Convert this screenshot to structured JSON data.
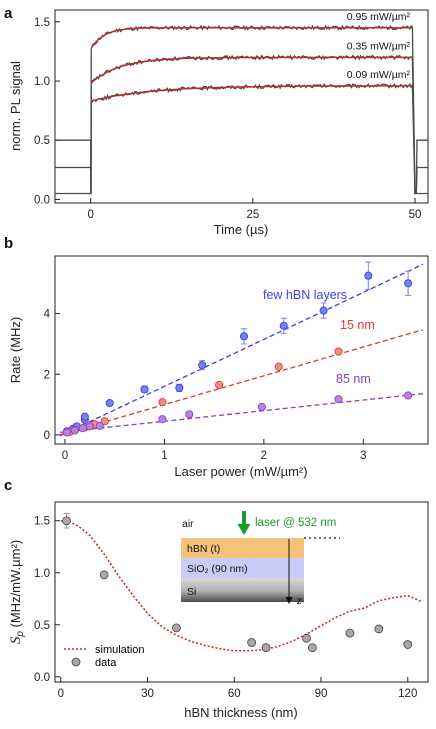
{
  "chart_data": [
    {
      "panel": "a",
      "type": "line",
      "xlabel": "Time (µs)",
      "ylabel": "norm. PL signal",
      "xlim": [
        -5.5,
        52
      ],
      "ylim": [
        -0.03,
        1.6
      ],
      "xticks": [
        0,
        25,
        50
      ],
      "yticks": [
        0.0,
        0.5,
        1.0,
        1.5
      ],
      "ytick_labels": [
        "0.0",
        "0.5",
        "1.0",
        "1.5"
      ],
      "series": [
        {
          "name": "0.95 mW/µm²",
          "baseline": 0.05,
          "on_start": 1.27,
          "plateau": 1.45,
          "tau": 2.0,
          "before": 0.5,
          "after": 0.5
        },
        {
          "name": "0.35 mW/µm²",
          "baseline": 0.05,
          "on_start": 0.98,
          "plateau": 1.2,
          "tau": 4.5,
          "before": 0.27,
          "after": 0.27
        },
        {
          "name": "0.09 mW/µm²",
          "baseline": 0.05,
          "on_start": 0.83,
          "plateau": 0.96,
          "tau": 9.0,
          "before": 0.05,
          "after": 0.05
        }
      ],
      "pulse": [
        0,
        50
      ],
      "colors": {
        "data": "#4a4a4a",
        "fit": "#c0282d"
      }
    },
    {
      "panel": "b",
      "type": "scatter",
      "xlabel": "Laser power (mW/µm²)",
      "ylabel": "Rate (MHz)",
      "xlim": [
        -0.1,
        3.65
      ],
      "ylim": [
        -0.3,
        5.9
      ],
      "xticks": [
        0,
        1,
        2,
        3
      ],
      "yticks": [
        0,
        2,
        4
      ],
      "series": [
        {
          "name": "few hBN layers",
          "color": "#3b3fe8",
          "fill": "#7b80f0",
          "fit_slope": 1.55,
          "fit_intercept": 0.05,
          "points": [
            [
              0.02,
              0.12
            ],
            [
              0.08,
              0.2
            ],
            [
              0.12,
              0.28
            ],
            [
              0.2,
              0.5
            ],
            [
              0.2,
              0.6
            ],
            [
              0.45,
              1.05
            ],
            [
              0.8,
              1.5
            ],
            [
              1.15,
              1.55
            ],
            [
              1.38,
              2.3
            ],
            [
              1.8,
              3.25
            ],
            [
              2.2,
              3.6
            ],
            [
              2.6,
              4.1
            ],
            [
              3.05,
              5.25
            ],
            [
              3.45,
              5.0
            ]
          ],
          "errors": [
            0.05,
            0.05,
            0.05,
            0.05,
            0.05,
            0.08,
            0.1,
            0.12,
            0.15,
            0.25,
            0.25,
            0.25,
            0.45,
            0.4
          ]
        },
        {
          "name": "15 nm",
          "color": "#e0382a",
          "fill": "#f08f86",
          "fit_slope": 0.95,
          "fit_intercept": 0.05,
          "points": [
            [
              0.05,
              0.1
            ],
            [
              0.1,
              0.15
            ],
            [
              0.2,
              0.25
            ],
            [
              0.3,
              0.35
            ],
            [
              0.4,
              0.45
            ],
            [
              0.98,
              1.08
            ],
            [
              1.55,
              1.65
            ],
            [
              2.15,
              2.25
            ],
            [
              2.75,
              2.75
            ]
          ],
          "errors": [
            0.03,
            0.03,
            0.03,
            0.03,
            0.03,
            0.05,
            0.05,
            0.05,
            0.05
          ]
        },
        {
          "name": "85 nm",
          "color": "#8e3fc0",
          "fill": "#b983e0",
          "fit_slope": 0.35,
          "fit_intercept": 0.1,
          "points": [
            [
              0.02,
              0.08
            ],
            [
              0.1,
              0.15
            ],
            [
              0.18,
              0.22
            ],
            [
              0.25,
              0.28
            ],
            [
              0.35,
              0.3
            ],
            [
              0.98,
              0.52
            ],
            [
              1.25,
              0.68
            ],
            [
              1.98,
              0.92
            ],
            [
              2.75,
              1.18
            ],
            [
              3.45,
              1.3
            ]
          ],
          "errors": [
            0.02,
            0.02,
            0.02,
            0.02,
            0.02,
            0.03,
            0.03,
            0.03,
            0.03,
            0.03
          ]
        }
      ]
    },
    {
      "panel": "c",
      "type": "scatter",
      "xlabel": "hBN thickness (nm)",
      "ylabel_italic": "S",
      "ylabel_sub": "p",
      "ylabel_units": " (MHz/mW.µm²)",
      "xlim": [
        -2,
        127
      ],
      "ylim": [
        -0.05,
        1.68
      ],
      "xticks": [
        0,
        30,
        60,
        90,
        120
      ],
      "yticks": [
        0.0,
        0.5,
        1.0,
        1.5
      ],
      "ytick_labels": [
        "0.0",
        "0.5",
        "1.0",
        "1.5"
      ],
      "simulation": {
        "name": "simulation",
        "color": "#d42020",
        "x": [
          0,
          3,
          6,
          10,
          15,
          20,
          25,
          30,
          35,
          40,
          45,
          50,
          55,
          60,
          65,
          70,
          75,
          80,
          85,
          90,
          95,
          100,
          105,
          110,
          115,
          120,
          125
        ],
        "y": [
          1.5,
          1.49,
          1.45,
          1.36,
          1.18,
          0.97,
          0.78,
          0.61,
          0.48,
          0.4,
          0.34,
          0.3,
          0.27,
          0.25,
          0.25,
          0.26,
          0.29,
          0.34,
          0.41,
          0.49,
          0.57,
          0.63,
          0.66,
          0.73,
          0.76,
          0.78,
          0.72
        ]
      },
      "data": {
        "name": "data",
        "color": "#a8a8a8",
        "points": [
          [
            2,
            1.5
          ],
          [
            15,
            0.98
          ],
          [
            40,
            0.47
          ],
          [
            66,
            0.33
          ],
          [
            71,
            0.28
          ],
          [
            85,
            0.37
          ],
          [
            87,
            0.28
          ],
          [
            100,
            0.42
          ],
          [
            110,
            0.46
          ],
          [
            120,
            0.31
          ]
        ],
        "errors": [
          0.07,
          0,
          0,
          0,
          0,
          0,
          0,
          0,
          0,
          0
        ]
      },
      "inset": {
        "air": "air",
        "laser": "laser @ 532 nm",
        "hbn": "hBN (t)",
        "sio2": "SiO₂ (90 nm)",
        "si": "Si",
        "z": "z",
        "colors": {
          "hbn": "#f5c27a",
          "sio2": "#c7cdf6",
          "laser": "#1e9a2d"
        }
      }
    }
  ]
}
